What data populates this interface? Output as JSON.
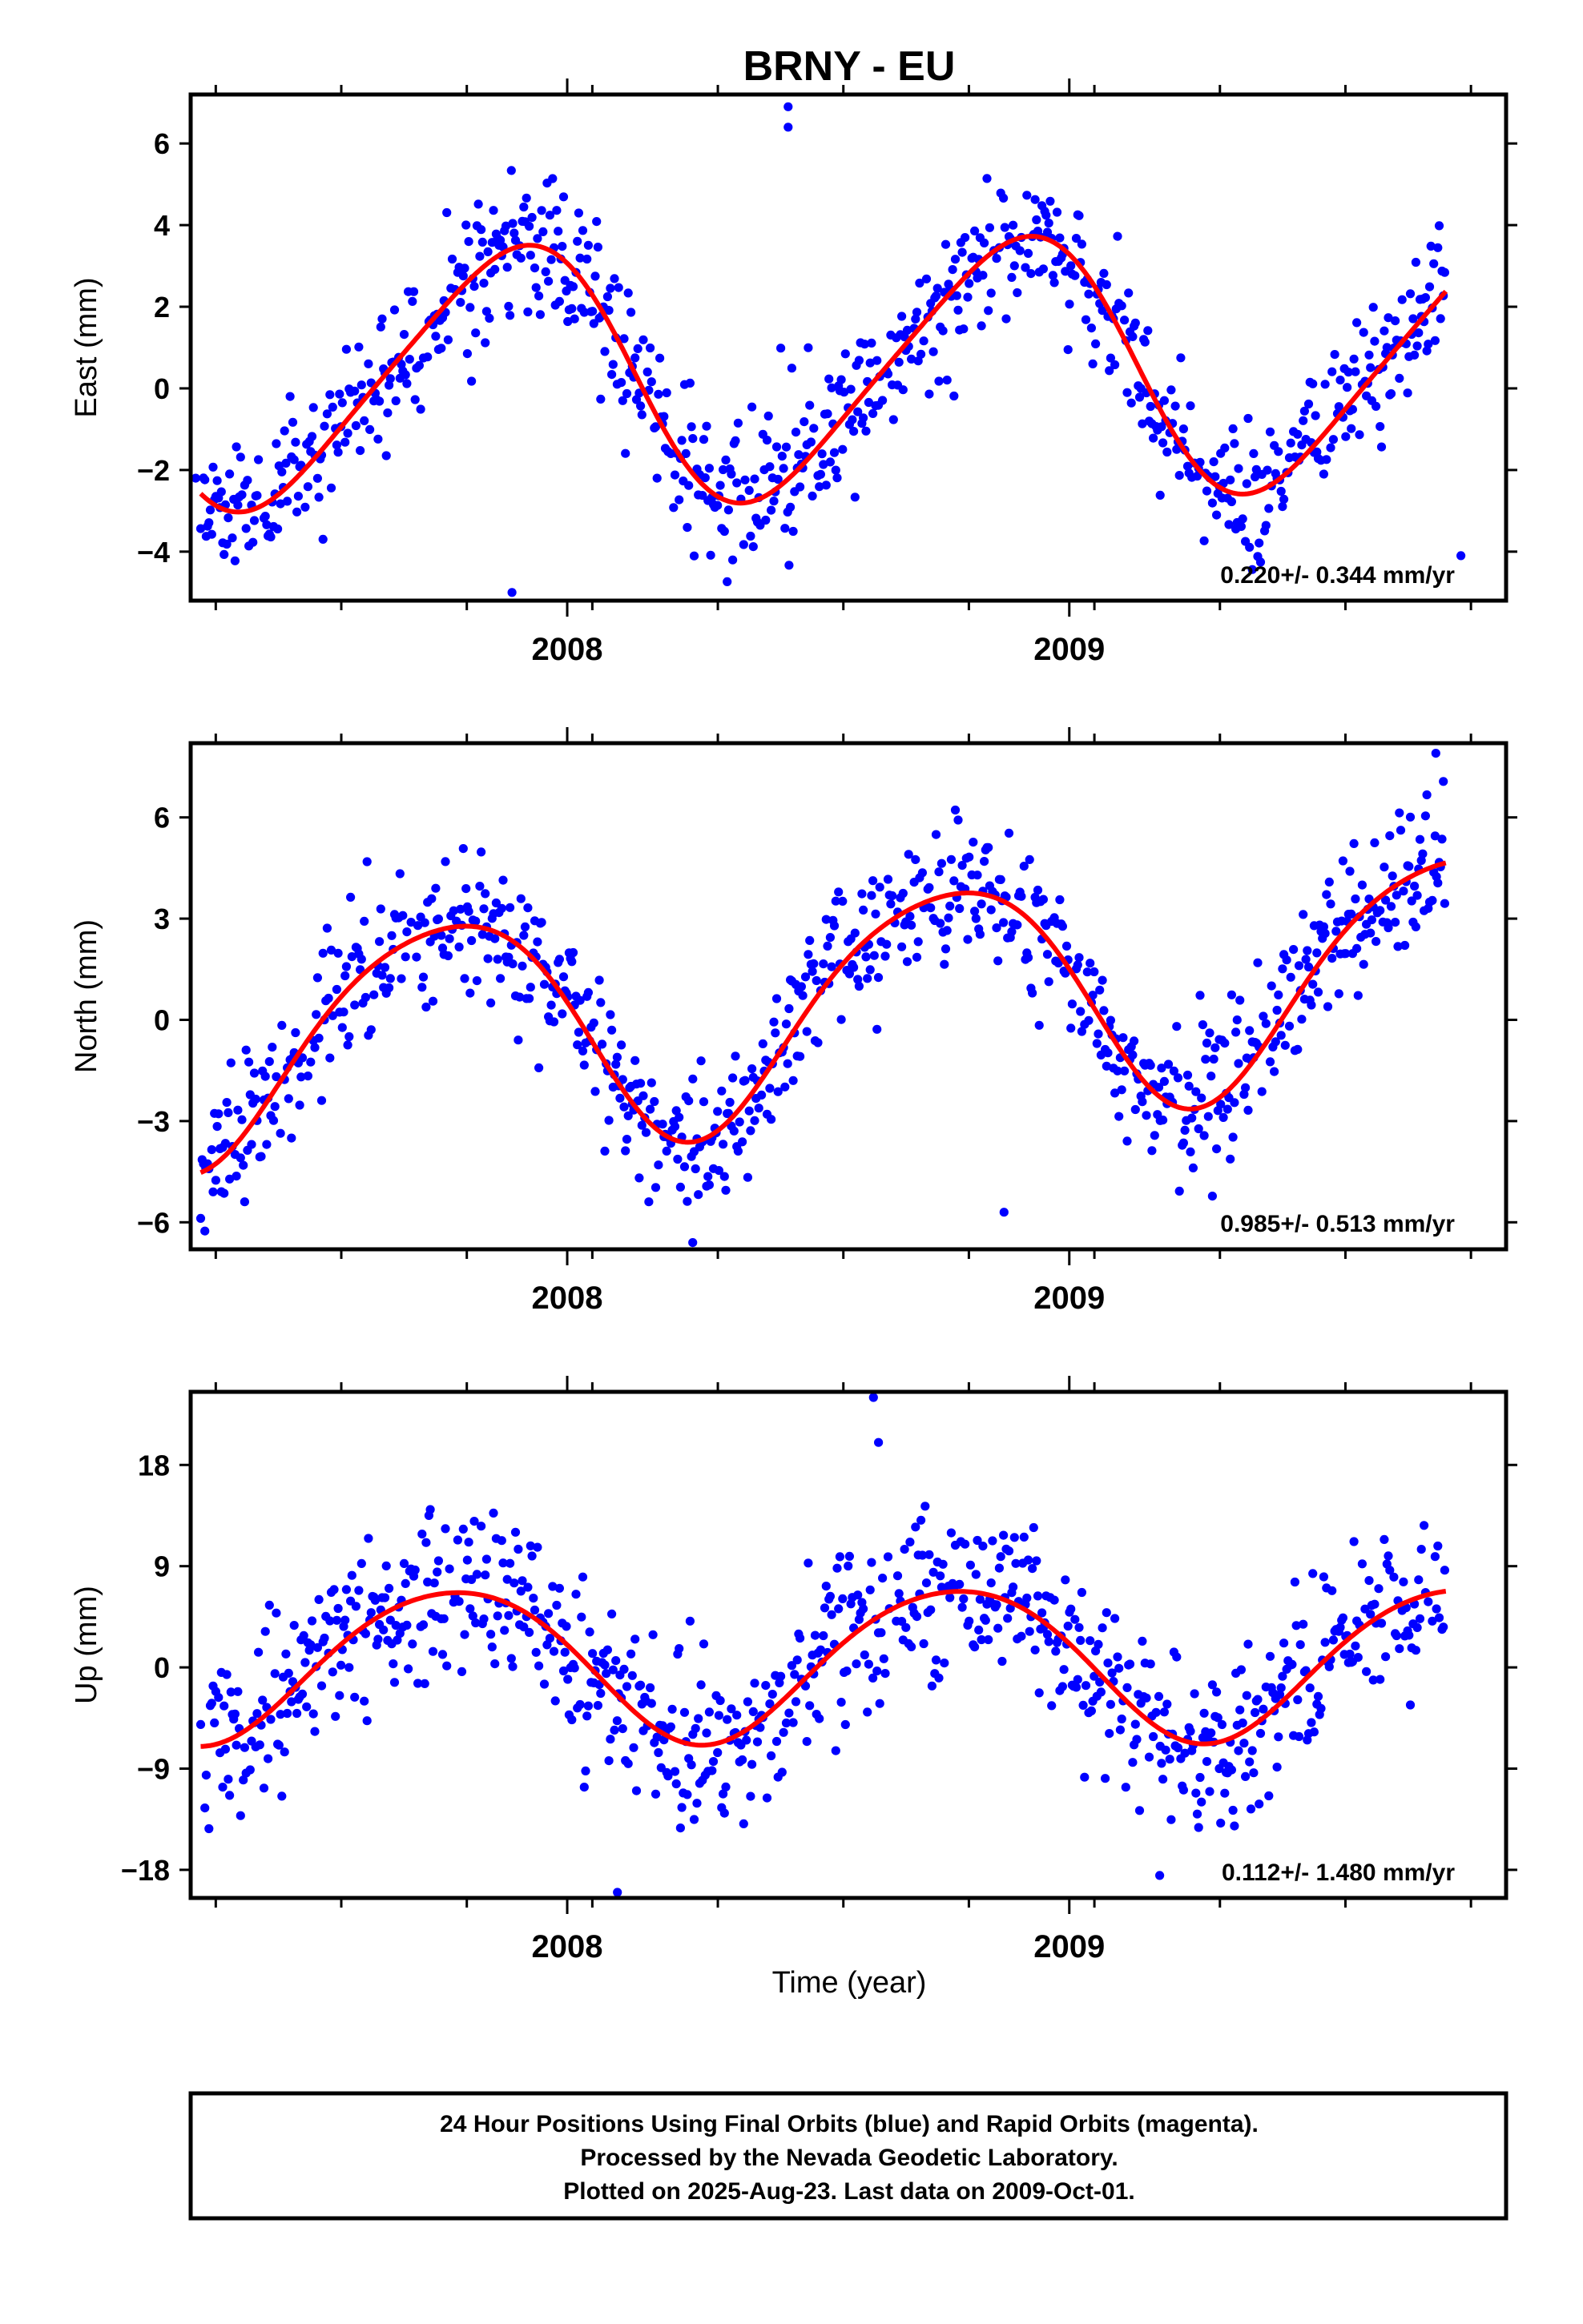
{
  "figure": {
    "title": "BRNY - EU",
    "xlabel": "Time (year)",
    "footer": [
      "24 Hour Positions Using Final Orbits (blue) and Rapid Orbits (magenta).",
      "Processed by the Nevada Geodetic Laboratory.",
      "Plotted on 2025-Aug-23. Last data on 2009-Oct-01."
    ]
  },
  "colors": {
    "final_orbits": "#0000ff",
    "fit_line": "#ff0000",
    "frame": "#000000"
  },
  "chart_data": [
    {
      "type": "scatter",
      "panel": "east",
      "ylabel": "East (mm)",
      "xlim": [
        2007.25,
        2009.87
      ],
      "ylim": [
        -5.2,
        7.2
      ],
      "yticks": [
        -4,
        -2,
        0,
        2,
        4,
        6
      ],
      "ytick_labels": [
        "−4",
        "−2",
        "0",
        "2",
        "4",
        "6"
      ],
      "xticks": [
        2008,
        2009
      ],
      "xtick_labels": [
        "2008",
        "2009"
      ],
      "rate_label": "0.220+/- 0.344 mm/yr",
      "fit": {
        "mean": 0.45,
        "trend": 0.22,
        "a1": 3.1,
        "p1": 2.3,
        "a2": 0.42,
        "p2": 1.4,
        "t0": 2008.5
      },
      "noise": 0.9,
      "seed": 11,
      "outliers": [
        [
          2008.44,
          6.9
        ],
        [
          2008.44,
          6.4
        ],
        [
          2007.89,
          -5.0
        ],
        [
          2007.26,
          -2.2
        ],
        [
          2009.78,
          -4.1
        ]
      ],
      "series": [
        {
          "name": "Final Orbits",
          "points": "daily"
        },
        {
          "name": "Fit",
          "points": "model"
        }
      ]
    },
    {
      "type": "scatter",
      "panel": "north",
      "ylabel": "North (mm)",
      "xlim": [
        2007.25,
        2009.87
      ],
      "ylim": [
        -6.8,
        8.2
      ],
      "yticks": [
        -6,
        -3,
        0,
        3,
        6
      ],
      "ytick_labels": [
        "−6",
        "−3",
        "0",
        "3",
        "6"
      ],
      "xticks": [
        2008,
        2009
      ],
      "xtick_labels": [
        "2008",
        "2009"
      ],
      "rate_label": "0.985+/- 0.513 mm/yr",
      "fit": {
        "mean": 0.45,
        "trend": 0.985,
        "a1": 3.4,
        "p1": 3.1,
        "a2": 0.45,
        "p2": 1.9,
        "t0": 2008.5
      },
      "noise": 1.05,
      "seed": 23,
      "outliers": [
        [
          2009.73,
          7.9
        ],
        [
          2008.25,
          -6.6
        ],
        [
          2007.28,
          -4.4
        ],
        [
          2008.87,
          -5.7
        ]
      ],
      "series": [
        {
          "name": "Final Orbits",
          "points": "daily"
        },
        {
          "name": "Fit",
          "points": "model"
        }
      ]
    },
    {
      "type": "scatter",
      "panel": "up",
      "ylabel": "Up (mm)",
      "xlim": [
        2007.25,
        2009.87
      ],
      "ylim": [
        -20.5,
        24.5
      ],
      "yticks": [
        -18,
        -9,
        0,
        9,
        18
      ],
      "ytick_labels": [
        "−18",
        "−9",
        "0",
        "9",
        "18"
      ],
      "xticks": [
        2008,
        2009
      ],
      "xtick_labels": [
        "2008",
        "2009"
      ],
      "rate_label": "0.112+/- 1.480 mm/yr",
      "fit": {
        "mean": 0.5,
        "trend": 0.112,
        "a1": 6.8,
        "p1": 3.0,
        "a2": 0.6,
        "p2": 1.5,
        "t0": 2008.5
      },
      "noise": 3.6,
      "seed": 37,
      "outliers": [
        [
          2008.61,
          24.0
        ],
        [
          2008.62,
          20.0
        ],
        [
          2008.1,
          -20.0
        ],
        [
          2009.18,
          -18.5
        ]
      ],
      "series": [
        {
          "name": "Final Orbits",
          "points": "daily"
        },
        {
          "name": "Fit",
          "points": "model"
        }
      ]
    }
  ]
}
